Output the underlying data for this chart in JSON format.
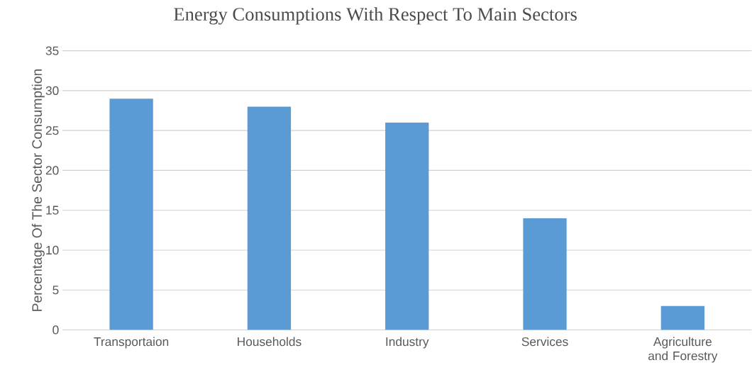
{
  "chart_data": {
    "type": "bar",
    "title": "Energy Consumptions With Respect To Main Sectors",
    "ylabel": "Percentage Of  The Sector Consumption",
    "categories": [
      "Transportaion",
      "Households",
      "Industry",
      "Services",
      "Agriculture and Forestry"
    ],
    "values": [
      29,
      28,
      26,
      14,
      3
    ],
    "color": "#5b9bd5",
    "ylim": [
      0,
      35
    ],
    "yticks": [
      0,
      5,
      10,
      15,
      20,
      25,
      30,
      35
    ],
    "grid": "y"
  }
}
